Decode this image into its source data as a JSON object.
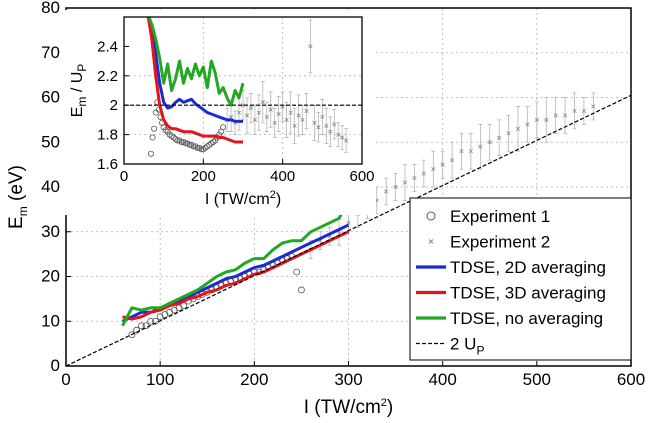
{
  "chart_data": [
    {
      "type": "scatter",
      "xlabel": "I (TW/cm",
      "xlabel_sup": "2",
      "xlabel_end": ")",
      "ylabel": "E",
      "ylabel_sub": "m",
      "ylabel_end": " (eV)",
      "xlim": [
        0,
        600
      ],
      "ylim": [
        0,
        80
      ],
      "xticks": [
        "0",
        "100",
        "200",
        "300",
        "400",
        "500",
        "600"
      ],
      "yticks": [
        "0",
        "10",
        "20",
        "30",
        "40",
        "50",
        "60",
        "70",
        "80"
      ],
      "grid": true,
      "legend_placement": "bottom-right",
      "legend": [
        {
          "label": "Experiment 1",
          "marker": "circle",
          "color": "#555555"
        },
        {
          "label": "Experiment 2",
          "marker": "x",
          "color": "#888888"
        },
        {
          "label": "TDSE, 2D averaging",
          "color": "#1a2bd6"
        },
        {
          "label": "TDSE, 3D averaging",
          "color": "#e3141c"
        },
        {
          "label": "TDSE, no averaging",
          "color": "#22a722"
        },
        {
          "label": "2 U",
          "label_sub": "P",
          "color": "#000000",
          "dashed": true
        }
      ],
      "series": [
        {
          "name": "Experiment 1",
          "marker": "circle",
          "color": "#555555",
          "x": [
            70,
            75,
            80,
            85,
            90,
            95,
            100,
            105,
            110,
            115,
            120,
            125,
            130,
            135,
            140,
            145,
            150,
            155,
            160,
            165,
            170,
            175,
            180,
            185,
            190,
            195,
            200,
            205,
            210,
            215,
            220,
            225,
            230,
            235,
            240,
            245,
            250
          ],
          "y": [
            7,
            8,
            9,
            9,
            10,
            10,
            11,
            11.5,
            12,
            12.5,
            13,
            13.5,
            14.5,
            15,
            15.5,
            16,
            16.5,
            17,
            17.5,
            18,
            18.5,
            19,
            19.5,
            19.5,
            20,
            20.5,
            21,
            21,
            21.5,
            22,
            22.5,
            23,
            23.5,
            24,
            24.5,
            21,
            17
          ]
        },
        {
          "name": "Experiment 2",
          "marker": "x",
          "color": "#888888",
          "x": [
            260,
            270,
            280,
            290,
            300,
            310,
            320,
            330,
            340,
            350,
            360,
            370,
            380,
            390,
            400,
            410,
            420,
            430,
            440,
            450,
            460,
            470,
            480,
            490,
            500,
            510,
            520,
            530,
            540,
            550,
            560
          ],
          "y": [
            26,
            28,
            29,
            30,
            32,
            34,
            36,
            37,
            39,
            40,
            41,
            42,
            43,
            44,
            45,
            46,
            48,
            48,
            49,
            50,
            51,
            52,
            53,
            54,
            55,
            55,
            56,
            56,
            57,
            57,
            58
          ],
          "err": [
            2,
            2,
            2,
            3,
            2,
            3,
            3,
            3,
            3,
            3,
            4,
            3,
            3,
            4,
            3,
            4,
            4,
            4,
            5,
            4,
            4,
            4,
            5,
            4,
            4,
            5,
            4,
            4,
            4,
            3,
            3
          ]
        },
        {
          "name": "TDSE, 2D averaging",
          "color": "#1a2bd6",
          "x": [
            60,
            70,
            80,
            90,
            100,
            110,
            120,
            130,
            140,
            150,
            160,
            170,
            180,
            190,
            200,
            210,
            220,
            230,
            240,
            250,
            260,
            270,
            280,
            290,
            300
          ],
          "y": [
            10,
            11,
            12,
            12,
            13,
            13.5,
            14.5,
            15.5,
            16.5,
            17.5,
            18.5,
            19.5,
            20,
            21,
            22,
            22.5,
            23.5,
            24.5,
            25.5,
            26.5,
            27.5,
            28.5,
            29.5,
            30.5,
            31.5
          ]
        },
        {
          "name": "TDSE, 3D averaging",
          "color": "#e3141c",
          "x": [
            60,
            70,
            80,
            90,
            100,
            110,
            120,
            130,
            140,
            150,
            160,
            170,
            180,
            190,
            200,
            210,
            220,
            230,
            240,
            250,
            260,
            270,
            280,
            290,
            300
          ],
          "y": [
            11,
            10.5,
            11,
            12,
            12.5,
            13.5,
            14,
            15,
            15.5,
            16.5,
            17,
            18,
            18.5,
            19.5,
            20.5,
            21,
            22,
            23,
            24,
            25,
            26,
            27,
            28,
            29,
            30
          ]
        },
        {
          "name": "TDSE, no averaging",
          "color": "#22a722",
          "x": [
            60,
            70,
            80,
            90,
            100,
            110,
            120,
            130,
            140,
            150,
            160,
            170,
            180,
            190,
            200,
            210,
            220,
            230,
            240,
            250,
            260,
            270,
            280,
            290,
            300
          ],
          "y": [
            9,
            13,
            12.5,
            13,
            13,
            14,
            15,
            16,
            17,
            18.5,
            20,
            21,
            21.5,
            23,
            24,
            24,
            26,
            27.5,
            28,
            28,
            30,
            31,
            32,
            33,
            37
          ]
        },
        {
          "name": "2 U",
          "name_sub": "P",
          "color": "#000000",
          "dashed": true,
          "x": [
            0,
            600
          ],
          "y": [
            0,
            60.5
          ]
        }
      ]
    },
    {
      "type": "scatter",
      "xlabel": "I (TW/cm",
      "xlabel_sup": "2",
      "xlabel_end": ")",
      "ylabel": "E",
      "ylabel_sub1": "m",
      "ylabel_mid": " / U",
      "ylabel_sub2": "P",
      "xlim": [
        0,
        600
      ],
      "ylim": [
        1.6,
        2.6
      ],
      "xticks": [
        "0",
        "200",
        "400",
        "600"
      ],
      "yticks": [
        "1.6",
        "1.8",
        "2",
        "2.2",
        "2.4"
      ],
      "grid": true,
      "reference_line": 2,
      "series": [
        {
          "name": "Experiment 1",
          "marker": "circle",
          "color": "#555555",
          "x": [
            68,
            72,
            76,
            80,
            84,
            88,
            92,
            96,
            100,
            105,
            110,
            115,
            120,
            125,
            130,
            135,
            140,
            145,
            150,
            155,
            160,
            165,
            170,
            175,
            180,
            185,
            190,
            195,
            200,
            205,
            210,
            215,
            220,
            225,
            230,
            235,
            240,
            245,
            250
          ],
          "y": [
            1.67,
            1.78,
            1.84,
            1.95,
            2.02,
            1.97,
            1.92,
            1.88,
            1.85,
            1.83,
            1.82,
            1.8,
            1.79,
            1.78,
            1.77,
            1.76,
            1.76,
            1.75,
            1.75,
            1.74,
            1.74,
            1.73,
            1.73,
            1.72,
            1.72,
            1.71,
            1.71,
            1.7,
            1.7,
            1.71,
            1.72,
            1.73,
            1.74,
            1.75,
            1.76,
            1.78,
            1.8,
            1.82,
            1.85
          ]
        },
        {
          "name": "Experiment 2",
          "marker": "x",
          "color": "#888888",
          "x": [
            260,
            270,
            280,
            290,
            300,
            310,
            320,
            330,
            340,
            350,
            360,
            370,
            380,
            390,
            400,
            410,
            420,
            430,
            440,
            450,
            460,
            470,
            480,
            490,
            500,
            510,
            520,
            530,
            540,
            550,
            560
          ],
          "y": [
            1.9,
            1.92,
            1.88,
            1.95,
            2.0,
            1.93,
            1.98,
            1.9,
            1.95,
            2.02,
            1.92,
            1.97,
            1.88,
            1.94,
            1.99,
            1.9,
            1.95,
            1.86,
            1.93,
            1.9,
            1.96,
            2.4,
            1.88,
            1.85,
            1.92,
            1.86,
            1.82,
            1.87,
            1.8,
            1.78,
            1.76
          ],
          "err": [
            0.08,
            0.1,
            0.08,
            0.12,
            0.1,
            0.12,
            0.1,
            0.1,
            0.12,
            0.14,
            0.1,
            0.12,
            0.1,
            0.12,
            0.1,
            0.12,
            0.14,
            0.12,
            0.14,
            0.1,
            0.12,
            0.18,
            0.12,
            0.1,
            0.12,
            0.12,
            0.1,
            0.1,
            0.08,
            0.08,
            0.08
          ]
        },
        {
          "name": "TDSE, 2D averaging",
          "color": "#1a2bd6",
          "x": [
            60,
            70,
            80,
            90,
            100,
            110,
            120,
            130,
            140,
            150,
            160,
            170,
            180,
            190,
            200,
            210,
            220,
            230,
            240,
            250,
            260,
            270,
            280,
            290,
            300
          ],
          "y": [
            2.62,
            2.5,
            2.35,
            2.15,
            2.02,
            1.98,
            1.99,
            2.02,
            2.04,
            2.02,
            2.03,
            2.04,
            2.01,
            1.99,
            1.97,
            1.95,
            1.94,
            1.93,
            1.92,
            1.91,
            1.9,
            1.9,
            1.89,
            1.89,
            1.89
          ]
        },
        {
          "name": "TDSE, 3D averaging",
          "color": "#e3141c",
          "x": [
            60,
            70,
            80,
            90,
            100,
            110,
            120,
            130,
            140,
            150,
            160,
            170,
            180,
            190,
            200,
            210,
            220,
            230,
            240,
            250,
            260,
            270,
            280,
            290,
            300
          ],
          "y": [
            2.62,
            2.45,
            2.2,
            2.0,
            1.9,
            1.86,
            1.84,
            1.84,
            1.83,
            1.82,
            1.82,
            1.82,
            1.81,
            1.8,
            1.79,
            1.79,
            1.79,
            1.79,
            1.78,
            1.78,
            1.77,
            1.76,
            1.75,
            1.75,
            1.75
          ]
        },
        {
          "name": "TDSE, no averaging",
          "color": "#22a722",
          "x": [
            60,
            70,
            80,
            90,
            100,
            110,
            120,
            130,
            140,
            150,
            160,
            170,
            180,
            190,
            200,
            210,
            220,
            230,
            240,
            250,
            260,
            270,
            280,
            290,
            300
          ],
          "y": [
            2.62,
            2.55,
            2.45,
            2.32,
            2.15,
            2.28,
            2.1,
            2.18,
            2.3,
            2.15,
            2.25,
            2.18,
            2.28,
            2.2,
            2.26,
            2.12,
            2.3,
            2.22,
            2.08,
            2.12,
            2.05,
            2.0,
            2.1,
            2.05,
            2.15
          ]
        }
      ]
    }
  ]
}
